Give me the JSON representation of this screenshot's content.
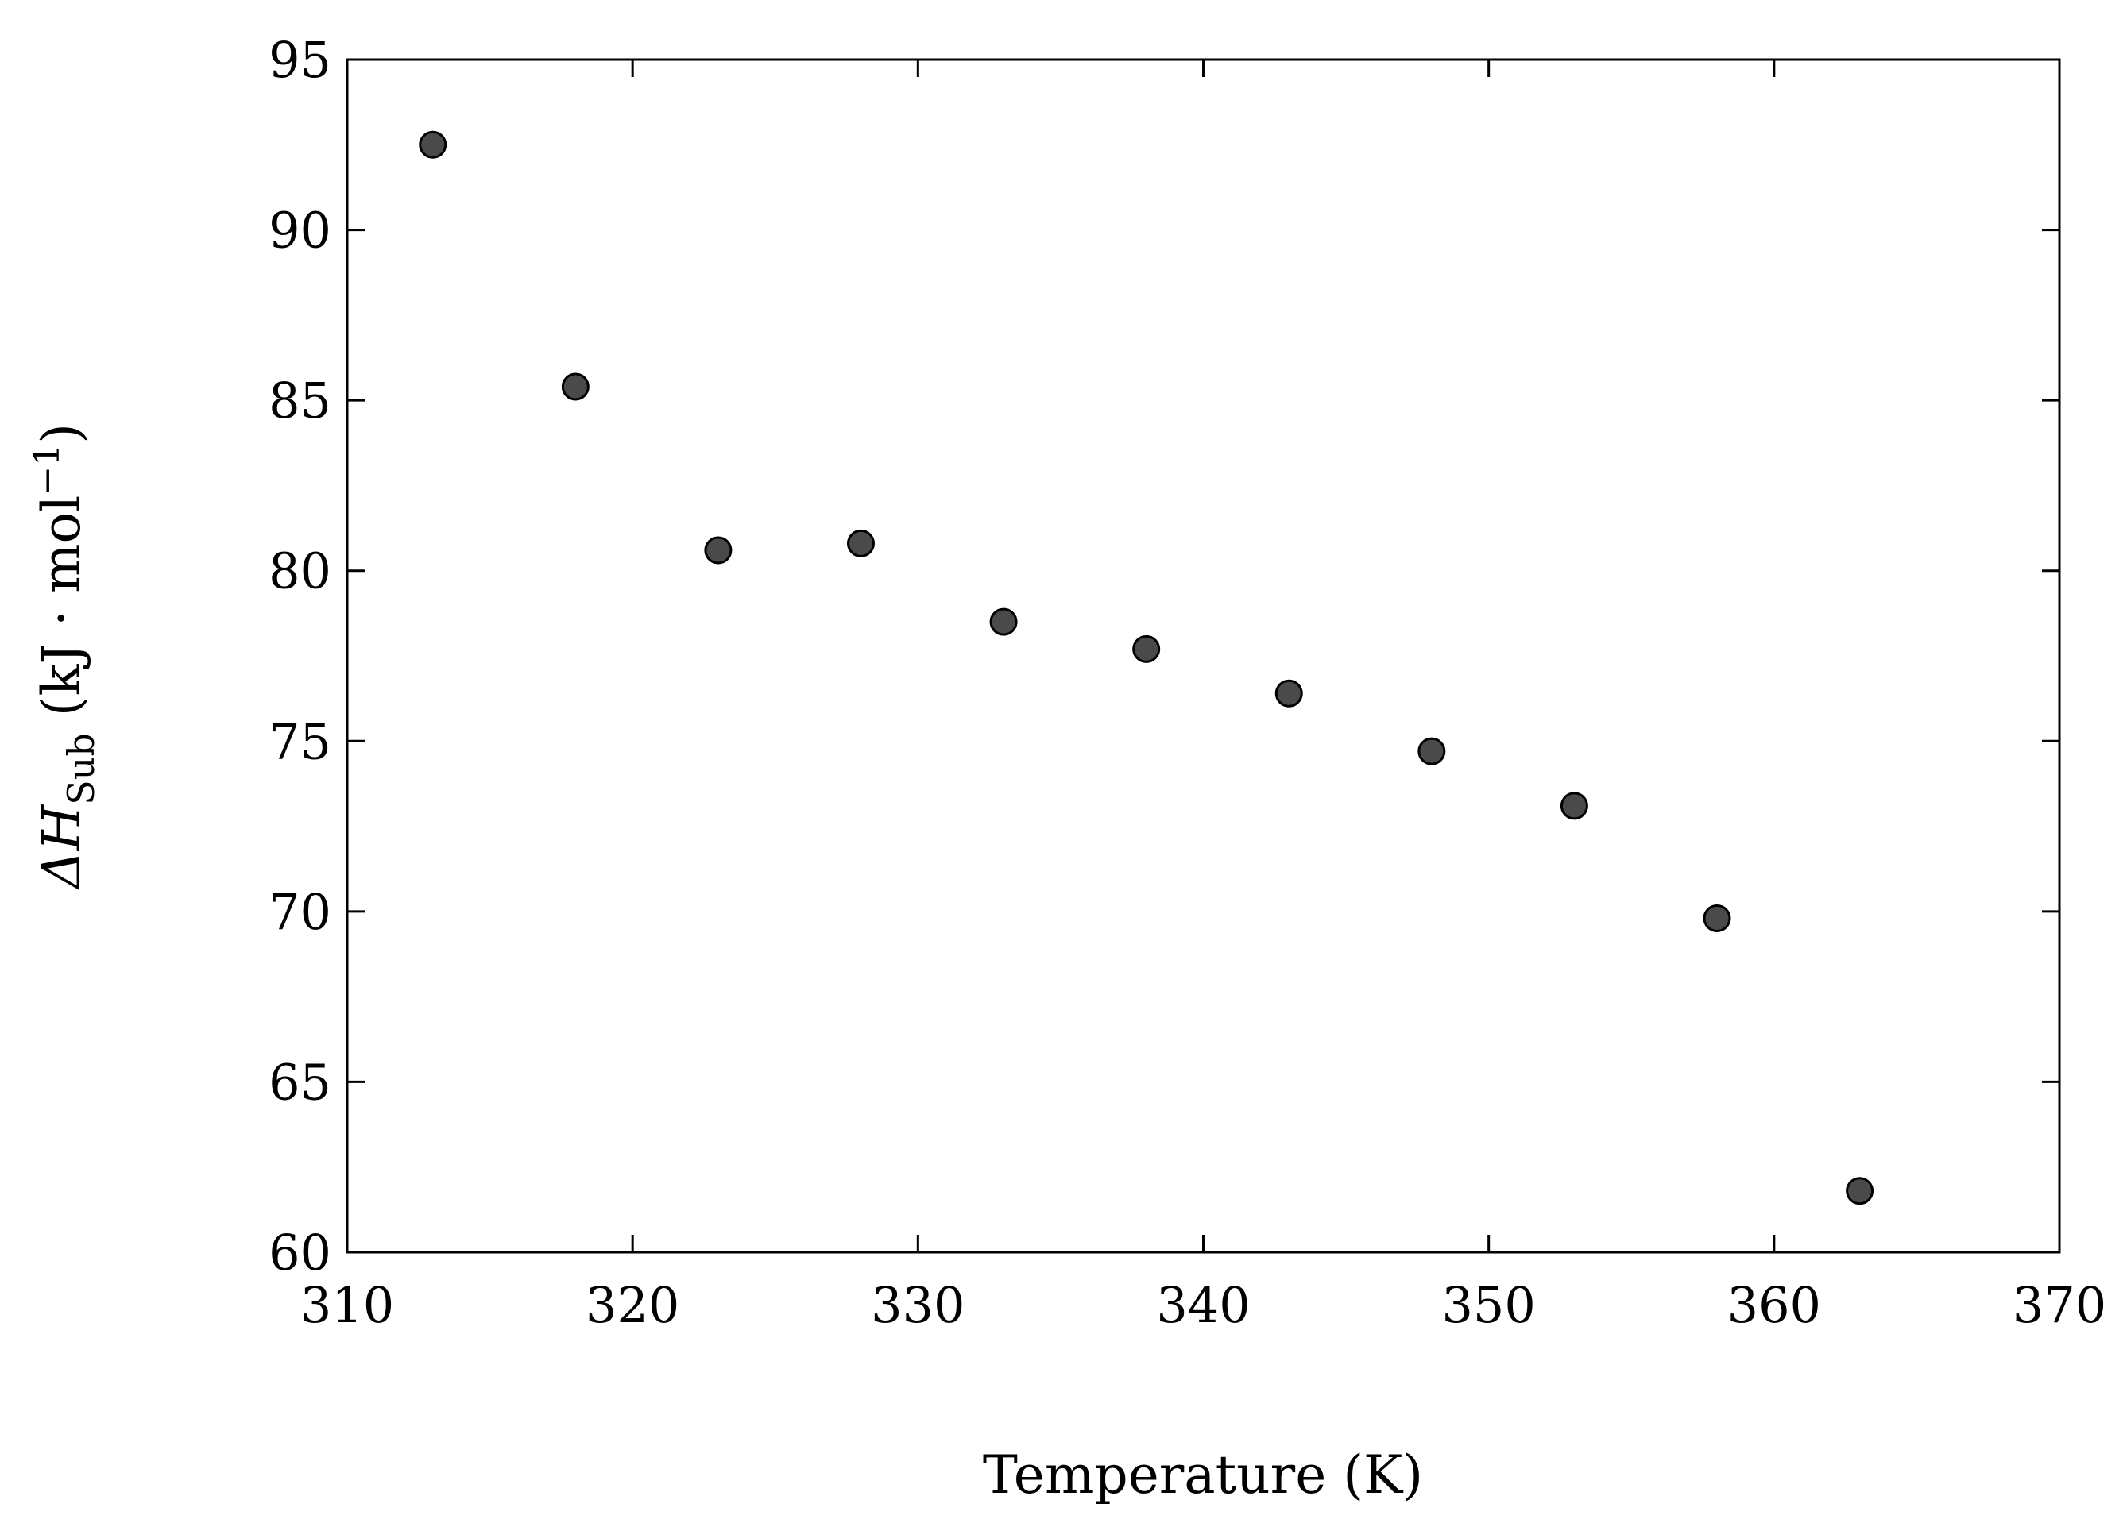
{
  "chart_data": {
    "type": "scatter",
    "title": "",
    "xlabel": "Temperature (K)",
    "ylabel_parts": {
      "prefix": "ΔH",
      "subscript": "Sub",
      "unit": " (kJ · mol",
      "superscript": "−1",
      "close": ")"
    },
    "xlim": [
      310,
      370
    ],
    "ylim": [
      60,
      95
    ],
    "xticks": [
      310,
      320,
      330,
      340,
      350,
      360,
      370
    ],
    "yticks": [
      60,
      65,
      70,
      75,
      80,
      85,
      90,
      95
    ],
    "grid": false,
    "legend": "none",
    "marker_color": "#4a4a4a",
    "x": [
      313,
      318,
      323,
      328,
      333,
      338,
      343,
      348,
      353,
      358,
      363
    ],
    "y": [
      92.5,
      85.4,
      80.6,
      80.8,
      78.5,
      77.7,
      76.4,
      74.7,
      73.1,
      69.8,
      61.8
    ]
  }
}
